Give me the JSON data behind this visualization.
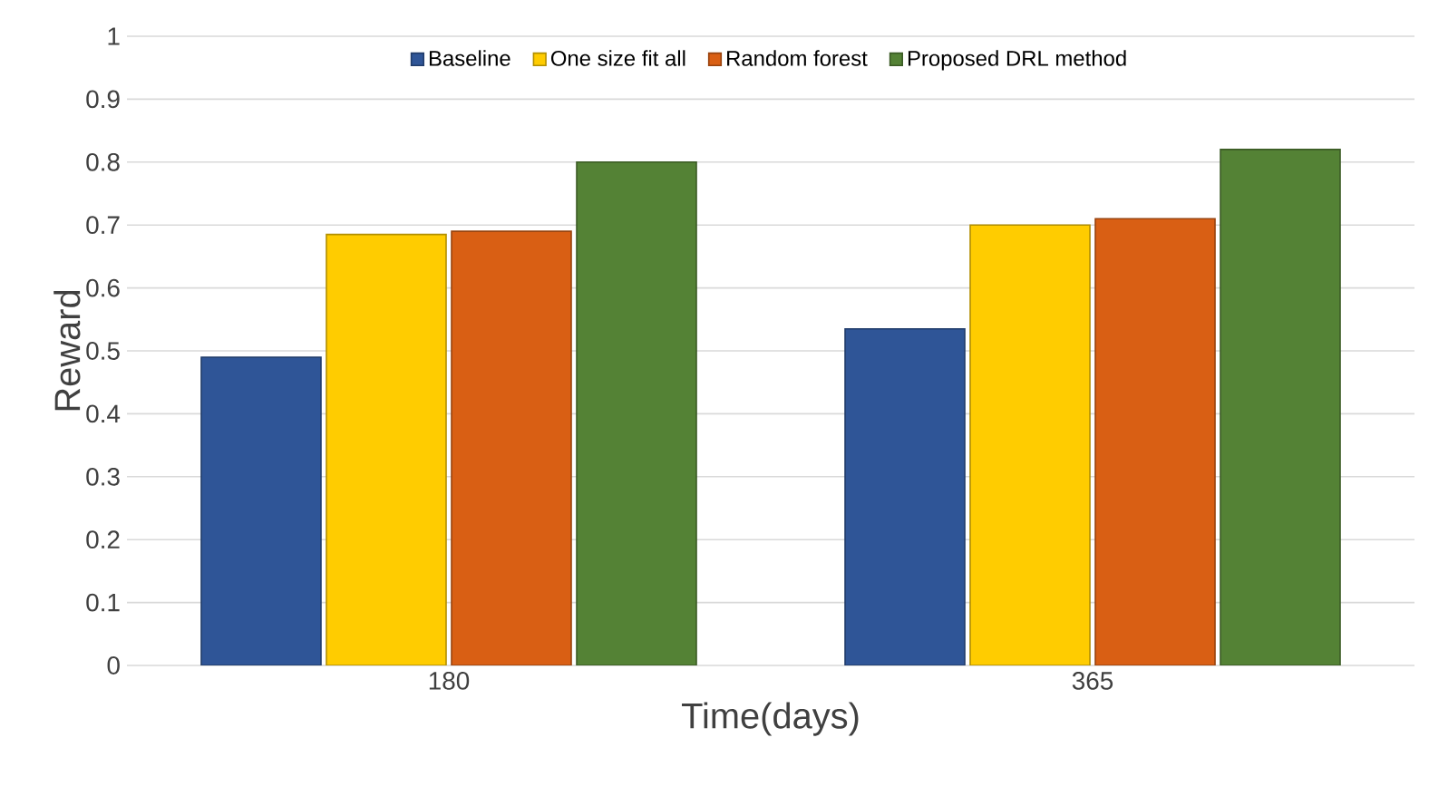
{
  "chart_data": {
    "type": "bar",
    "ylabel": "Reward",
    "xlabel": "Time(days)",
    "categories": [
      "180",
      "365"
    ],
    "series": [
      {
        "name": "Baseline",
        "color": "#2f5597",
        "values": [
          0.49,
          0.535
        ]
      },
      {
        "name": "One size fit all",
        "color": "#ffcc00",
        "values": [
          0.685,
          0.7
        ]
      },
      {
        "name": "Random forest",
        "color": "#d95f14",
        "values": [
          0.69,
          0.71
        ]
      },
      {
        "name": "Proposed DRL method",
        "color": "#548235",
        "values": [
          0.8,
          0.82
        ]
      }
    ],
    "ylim": [
      0,
      1
    ],
    "yticks": [
      0,
      0.1,
      0.2,
      0.3,
      0.4,
      0.5,
      0.6,
      0.7,
      0.8,
      0.9,
      1
    ],
    "grid": "y",
    "legend": "top"
  }
}
